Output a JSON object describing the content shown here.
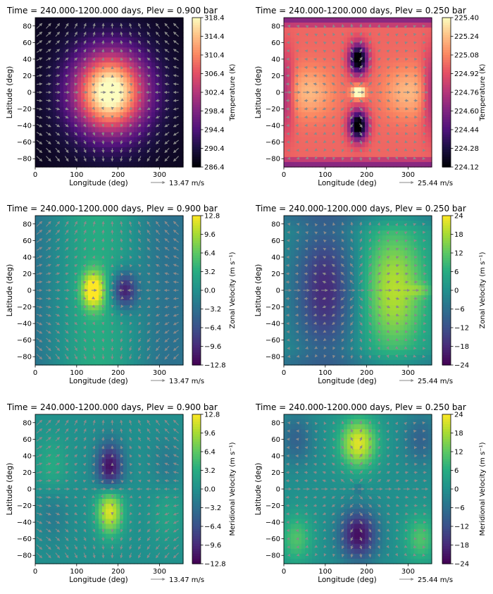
{
  "chart_data": [
    {
      "type": "heatmap",
      "title": "Time = 240.000-1200.000 days, Plev = 0.900 bar",
      "xlabel": "Longitude (deg)",
      "ylabel": "Latitude (deg)",
      "xlim": [
        0,
        357
      ],
      "ylim": [
        -90,
        90
      ],
      "xticks": [
        0,
        100,
        200,
        300
      ],
      "yticks": [
        -80,
        -60,
        -40,
        -20,
        0,
        20,
        40,
        60,
        80
      ],
      "field": "temperature",
      "colormap": "magma",
      "colorbar": {
        "label": "Temperature (K)",
        "min": 286.4,
        "max": 318.4,
        "ticks": [
          "286.4",
          "290.4",
          "294.4",
          "298.4",
          "302.4",
          "306.4",
          "310.4",
          "314.4",
          "318.4"
        ]
      },
      "quiver_key": "13.47 m/s",
      "grid": false
    },
    {
      "type": "heatmap",
      "title": "Time = 240.000-1200.000 days, Plev = 0.250 bar",
      "xlabel": "Longitude (deg)",
      "ylabel": "Latitude (deg)",
      "xlim": [
        0,
        357
      ],
      "ylim": [
        -90,
        90
      ],
      "xticks": [
        0,
        100,
        200,
        300
      ],
      "yticks": [
        -80,
        -60,
        -40,
        -20,
        0,
        20,
        40,
        60,
        80
      ],
      "field": "temperature",
      "colormap": "magma",
      "colorbar": {
        "label": "Temperature (K)",
        "min": 224.12,
        "max": 225.4,
        "ticks": [
          "224.12",
          "224.28",
          "224.44",
          "224.60",
          "224.76",
          "224.92",
          "225.08",
          "225.24",
          "225.40"
        ]
      },
      "quiver_key": "25.44 m/s",
      "grid": false
    },
    {
      "type": "heatmap",
      "title": "Time = 240.000-1200.000 days, Plev = 0.900 bar",
      "xlabel": "Longitude (deg)",
      "ylabel": "Latitude (deg)",
      "xlim": [
        0,
        357
      ],
      "ylim": [
        -90,
        90
      ],
      "xticks": [
        0,
        100,
        200,
        300
      ],
      "yticks": [
        -80,
        -60,
        -40,
        -20,
        0,
        20,
        40,
        60,
        80
      ],
      "field": "zonal",
      "colormap": "viridis",
      "colorbar": {
        "label": "Zonal Velocity (m s⁻¹)",
        "min": -12.8,
        "max": 12.8,
        "ticks": [
          "−12.8",
          "−9.6",
          "−6.4",
          "−3.2",
          "0.0",
          "3.2",
          "6.4",
          "9.6",
          "12.8"
        ]
      },
      "quiver_key": "13.47 m/s",
      "grid": false
    },
    {
      "type": "heatmap",
      "title": "Time = 240.000-1200.000 days, Plev = 0.250 bar",
      "xlabel": "Longitude (deg)",
      "ylabel": "Latitude (deg)",
      "xlim": [
        0,
        357
      ],
      "ylim": [
        -90,
        90
      ],
      "xticks": [
        0,
        100,
        200,
        300
      ],
      "yticks": [
        -80,
        -60,
        -40,
        -20,
        0,
        20,
        40,
        60,
        80
      ],
      "field": "zonal",
      "colormap": "viridis",
      "colorbar": {
        "label": "Zonal Velocity (m s⁻¹)",
        "min": -24,
        "max": 24,
        "ticks": [
          "−24",
          "−18",
          "−12",
          "−6",
          "0",
          "6",
          "12",
          "18",
          "24"
        ]
      },
      "quiver_key": "25.44 m/s",
      "grid": false
    },
    {
      "type": "heatmap",
      "title": "Time = 240.000-1200.000 days, Plev = 0.900 bar",
      "xlabel": "Longitude (deg)",
      "ylabel": "Latitude (deg)",
      "xlim": [
        0,
        357
      ],
      "ylim": [
        -90,
        90
      ],
      "xticks": [
        0,
        100,
        200,
        300
      ],
      "yticks": [
        -80,
        -60,
        -40,
        -20,
        0,
        20,
        40,
        60,
        80
      ],
      "field": "meridional",
      "colormap": "viridis",
      "colorbar": {
        "label": "Meridional Velocity (m s⁻¹)",
        "min": -12.8,
        "max": 12.8,
        "ticks": [
          "−12.8",
          "−9.6",
          "−6.4",
          "−3.2",
          "0.0",
          "3.2",
          "6.4",
          "9.6",
          "12.8"
        ]
      },
      "quiver_key": "13.47 m/s",
      "grid": false
    },
    {
      "type": "heatmap",
      "title": "Time = 240.000-1200.000 days, Plev = 0.250 bar",
      "xlabel": "Longitude (deg)",
      "ylabel": "Latitude (deg)",
      "xlim": [
        0,
        357
      ],
      "ylim": [
        -90,
        90
      ],
      "xticks": [
        0,
        100,
        200,
        300
      ],
      "yticks": [
        -80,
        -60,
        -40,
        -20,
        0,
        20,
        40,
        60,
        80
      ],
      "field": "meridional",
      "colormap": "viridis",
      "colorbar": {
        "label": "Meridional Velocity (m s⁻¹)",
        "min": -24,
        "max": 24,
        "ticks": [
          "−24",
          "−18",
          "−12",
          "−6",
          "0",
          "6",
          "12",
          "18",
          "24"
        ]
      },
      "quiver_key": "25.44 m/s",
      "grid": false
    }
  ]
}
